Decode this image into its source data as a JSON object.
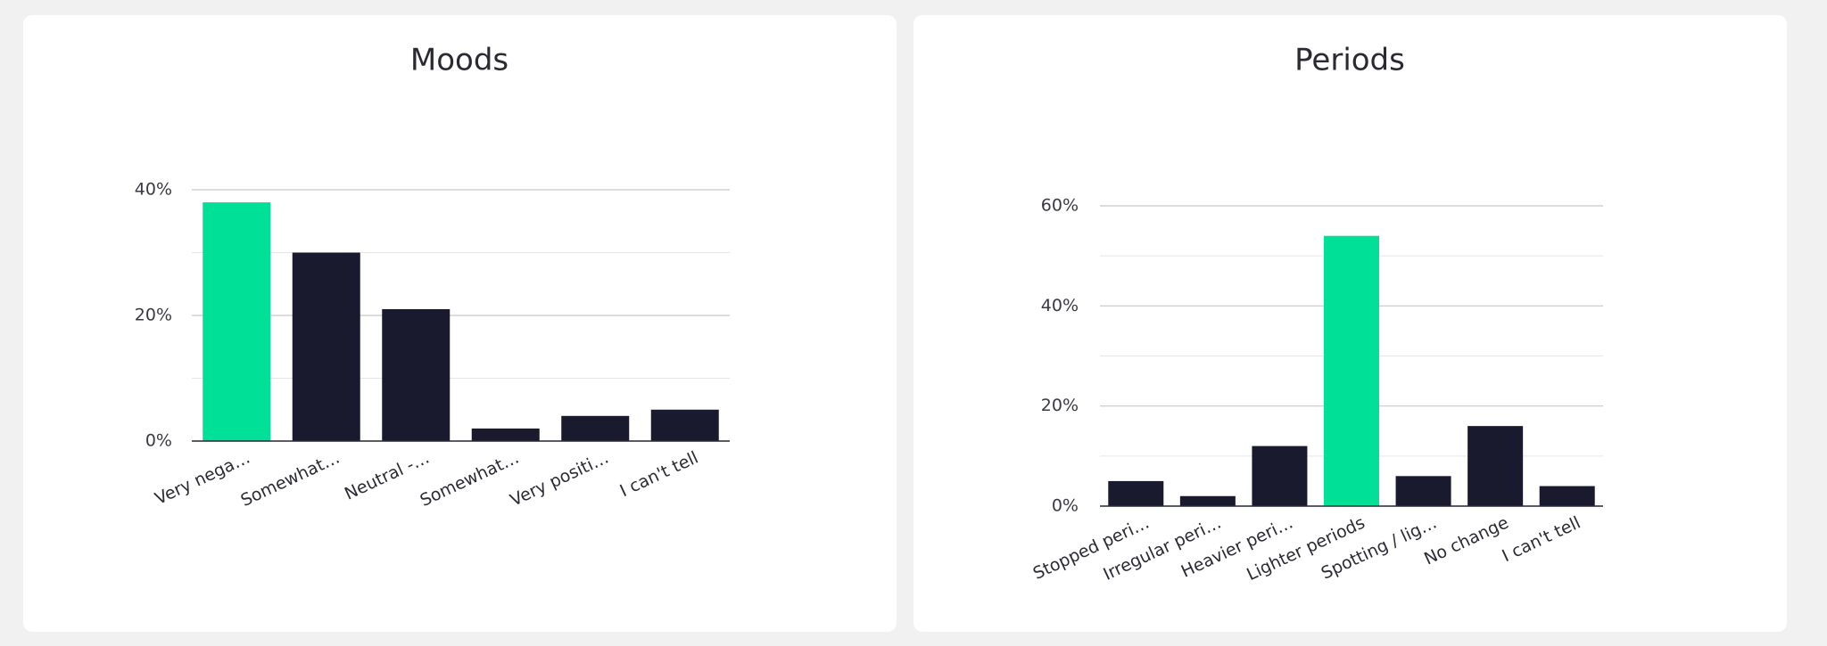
{
  "chart_data": [
    {
      "type": "bar",
      "title": "Moods",
      "categories": [
        "Very nega…",
        "Somewhat…",
        "Neutral -…",
        "Somewhat…",
        "Very positi…",
        "I can't tell"
      ],
      "values": [
        38,
        30,
        21,
        2,
        4,
        5
      ],
      "colors": [
        "#00e096",
        "#1a1a2e",
        "#1a1a2e",
        "#1a1a2e",
        "#1a1a2e",
        "#1a1a2e"
      ],
      "ylim": [
        0,
        40
      ],
      "yticks": [
        {
          "value": 0,
          "label": "0%"
        },
        {
          "value": 20,
          "label": "20%"
        },
        {
          "value": 40,
          "label": "40%"
        }
      ],
      "minor_yticks": [
        10,
        30
      ],
      "grid": true
    },
    {
      "type": "bar",
      "title": "Periods",
      "categories": [
        "Stopped peri…",
        "Irregular peri…",
        "Heavier peri…",
        "Lighter periods",
        "Spotting / lig…",
        "No change",
        "I can't tell"
      ],
      "values": [
        5,
        2,
        12,
        54,
        6,
        16,
        4
      ],
      "colors": [
        "#1a1a2e",
        "#1a1a2e",
        "#1a1a2e",
        "#00e096",
        "#1a1a2e",
        "#1a1a2e",
        "#1a1a2e"
      ],
      "ylim": [
        0,
        60
      ],
      "yticks": [
        {
          "value": 0,
          "label": "0%"
        },
        {
          "value": 20,
          "label": "20%"
        },
        {
          "value": 40,
          "label": "40%"
        },
        {
          "value": 60,
          "label": "60%"
        }
      ],
      "minor_yticks": [
        10,
        30,
        50
      ],
      "grid": true
    }
  ]
}
